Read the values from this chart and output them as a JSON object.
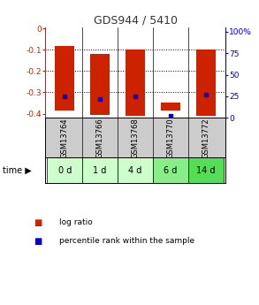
{
  "title": "GDS944 / 5410",
  "samples": [
    "GSM13764",
    "GSM13766",
    "GSM13768",
    "GSM13770",
    "GSM13772"
  ],
  "time_labels": [
    "0 d",
    "1 d",
    "4 d",
    "6 d",
    "14 d"
  ],
  "log_ratio_tops": [
    -0.08,
    -0.12,
    -0.1,
    -0.35,
    -0.1
  ],
  "log_ratio_bottoms": [
    -0.385,
    -0.405,
    -0.41,
    -0.385,
    -0.41
  ],
  "percentile_ranks_pct": [
    25,
    22,
    25,
    2,
    27
  ],
  "ylim_left": [
    -0.42,
    0.005
  ],
  "ylim_right": [
    0,
    105
  ],
  "yticks_left": [
    0,
    -0.1,
    -0.2,
    -0.3,
    -0.4
  ],
  "yticks_right": [
    0,
    25,
    50,
    75,
    100
  ],
  "bar_color": "#cc2200",
  "percentile_color": "#0000cc",
  "time_bg_colors": [
    "#ccffcc",
    "#ccffcc",
    "#ccffcc",
    "#88ee88",
    "#55dd55"
  ],
  "sample_bg_color": "#cccccc",
  "title_color": "#333333",
  "left_axis_color": "#cc2200",
  "right_axis_color": "#0000cc",
  "bar_width": 0.55,
  "dotted_lines": [
    -0.1,
    -0.2,
    -0.3
  ]
}
